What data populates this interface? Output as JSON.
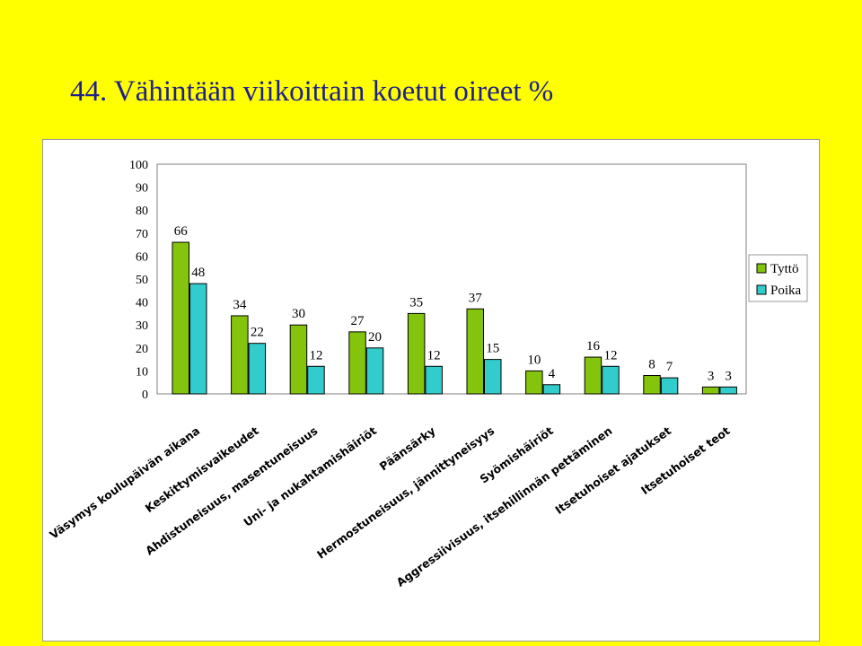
{
  "slide": {
    "title": "44. Vähintään viikoittain koetut oireet %"
  },
  "chart_data": {
    "type": "bar",
    "title": "",
    "xlabel": "",
    "ylabel": "",
    "ylim": [
      0,
      100
    ],
    "yticks": [
      "0",
      "10",
      "20",
      "30",
      "40",
      "50",
      "60",
      "70",
      "80",
      "90",
      "100"
    ],
    "categories": [
      "Väsymys koulupäivän aikana",
      "Keskittymisvaikeudet",
      "Ahdistuneisuus, masentuneisuus",
      "Uni- ja nukahtamishäiriöt",
      "Päänsärky",
      "Hermostuneisuus, jännittyneisyys",
      "Syömishäiriöt",
      "Aggressiivisuus, itsehillinnän pettäminen",
      "Itsetuhoiset ajatukset",
      "Itsetuhoiset teot"
    ],
    "series": [
      {
        "name": "Tyttö",
        "color": "#84c40c",
        "values": [
          66,
          34,
          30,
          27,
          35,
          37,
          10,
          16,
          8,
          3
        ]
      },
      {
        "name": "Poika",
        "color": "#33cccc",
        "values": [
          48,
          22,
          12,
          20,
          12,
          15,
          4,
          12,
          7,
          3
        ]
      }
    ],
    "grid": false,
    "legend": "right"
  }
}
